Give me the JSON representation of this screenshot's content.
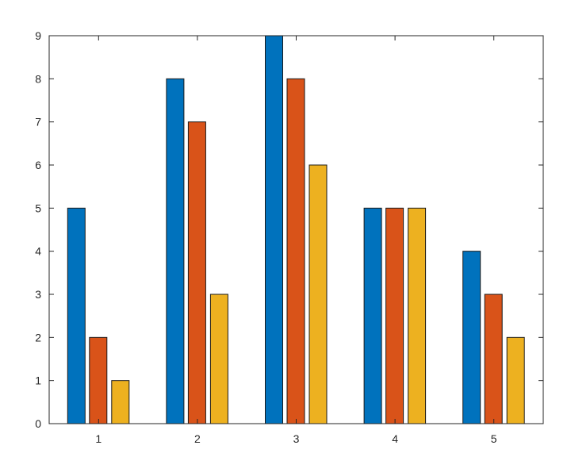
{
  "chart_data": {
    "type": "bar",
    "categories": [
      "1",
      "2",
      "3",
      "4",
      "5"
    ],
    "series": [
      {
        "values": [
          5,
          8,
          9,
          5,
          4
        ],
        "color": "#0072BD"
      },
      {
        "values": [
          2,
          7,
          8,
          5,
          3
        ],
        "color": "#D95319"
      },
      {
        "values": [
          1,
          3,
          6,
          5,
          2
        ],
        "color": "#EDB120"
      }
    ],
    "yticks": [
      "0",
      "1",
      "2",
      "3",
      "4",
      "5",
      "6",
      "7",
      "8",
      "9"
    ],
    "ylim": [
      0,
      9
    ],
    "grid": false,
    "title": "",
    "xlabel": "",
    "ylabel": ""
  }
}
